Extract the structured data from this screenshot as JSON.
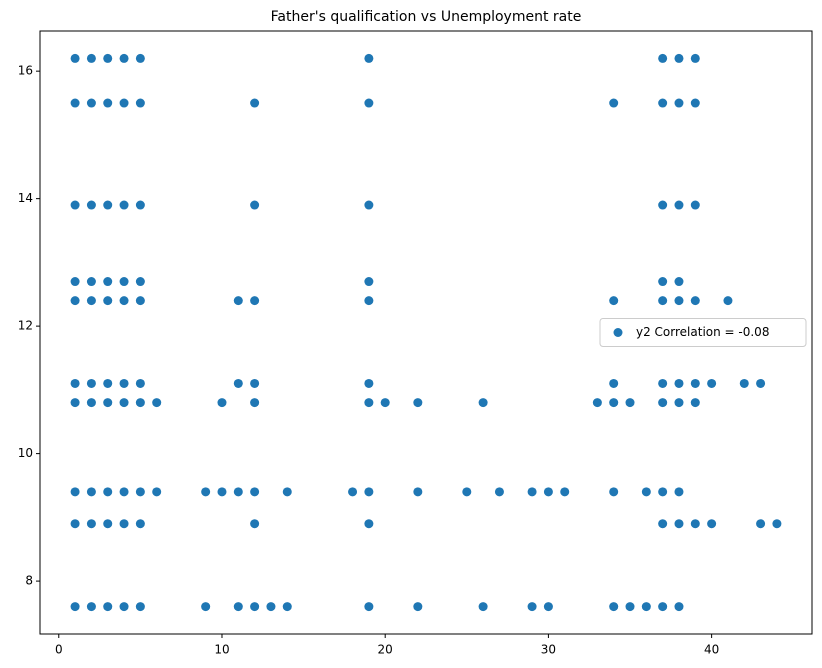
{
  "chart_data": {
    "type": "scatter",
    "title": "Father's qualification vs Unemployment rate",
    "series": [
      {
        "name": "y2 Correlation = -0.08",
        "color": "#1f77b4",
        "x": [
          1,
          2,
          3,
          4,
          5,
          19,
          37,
          38,
          39,
          1,
          2,
          3,
          4,
          5,
          12,
          19,
          34,
          37,
          38,
          39,
          1,
          2,
          3,
          4,
          5,
          12,
          19,
          37,
          38,
          39,
          1,
          2,
          3,
          4,
          5,
          19,
          37,
          38,
          1,
          2,
          3,
          4,
          5,
          11,
          12,
          19,
          34,
          37,
          38,
          39,
          41,
          1,
          2,
          3,
          4,
          5,
          11,
          12,
          19,
          34,
          37,
          38,
          39,
          40,
          42,
          43,
          1,
          2,
          3,
          4,
          5,
          6,
          10,
          12,
          19,
          20,
          22,
          26,
          33,
          34,
          35,
          37,
          38,
          39,
          1,
          2,
          3,
          4,
          5,
          6,
          9,
          10,
          11,
          12,
          14,
          18,
          19,
          22,
          25,
          27,
          29,
          30,
          31,
          34,
          36,
          37,
          38,
          1,
          2,
          3,
          4,
          5,
          12,
          19,
          37,
          38,
          39,
          40,
          43,
          44,
          1,
          2,
          3,
          4,
          5,
          9,
          11,
          12,
          13,
          14,
          19,
          22,
          26,
          29,
          30,
          34,
          35,
          36,
          37,
          38
        ],
        "y": [
          16.2,
          16.2,
          16.2,
          16.2,
          16.2,
          16.2,
          16.2,
          16.2,
          16.2,
          15.5,
          15.5,
          15.5,
          15.5,
          15.5,
          15.5,
          15.5,
          15.5,
          15.5,
          15.5,
          15.5,
          13.9,
          13.9,
          13.9,
          13.9,
          13.9,
          13.9,
          13.9,
          13.9,
          13.9,
          13.9,
          12.7,
          12.7,
          12.7,
          12.7,
          12.7,
          12.7,
          12.7,
          12.7,
          12.4,
          12.4,
          12.4,
          12.4,
          12.4,
          12.4,
          12.4,
          12.4,
          12.4,
          12.4,
          12.4,
          12.4,
          12.4,
          11.1,
          11.1,
          11.1,
          11.1,
          11.1,
          11.1,
          11.1,
          11.1,
          11.1,
          11.1,
          11.1,
          11.1,
          11.1,
          11.1,
          11.1,
          10.8,
          10.8,
          10.8,
          10.8,
          10.8,
          10.8,
          10.8,
          10.8,
          10.8,
          10.8,
          10.8,
          10.8,
          10.8,
          10.8,
          10.8,
          10.8,
          10.8,
          10.8,
          9.4,
          9.4,
          9.4,
          9.4,
          9.4,
          9.4,
          9.4,
          9.4,
          9.4,
          9.4,
          9.4,
          9.4,
          9.4,
          9.4,
          9.4,
          9.4,
          9.4,
          9.4,
          9.4,
          9.4,
          9.4,
          9.4,
          9.4,
          8.9,
          8.9,
          8.9,
          8.9,
          8.9,
          8.9,
          8.9,
          8.9,
          8.9,
          8.9,
          8.9,
          8.9,
          8.9,
          7.6,
          7.6,
          7.6,
          7.6,
          7.6,
          7.6,
          7.6,
          7.6,
          7.6,
          7.6,
          7.6,
          7.6,
          7.6,
          7.6,
          7.6,
          7.6,
          7.6,
          7.6,
          7.6,
          7.6
        ]
      }
    ],
    "xlim": [
      -1.15,
      46.15
    ],
    "xticks": [
      0,
      10,
      20,
      30,
      40
    ],
    "ylim": [
      7.17,
      16.63
    ],
    "yticks": [
      8,
      10,
      12,
      14,
      16
    ],
    "grid": false,
    "legend": "center right"
  }
}
